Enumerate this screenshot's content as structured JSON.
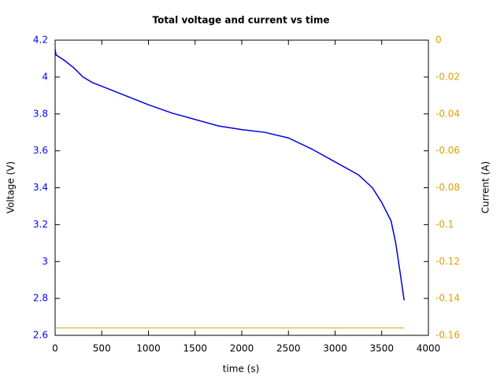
{
  "chart_data": {
    "type": "line",
    "title": "Total voltage and current vs time",
    "x_label": "time (s)",
    "y_label": "Voltage (V)",
    "y2_label": "Current (A)",
    "xlim": [
      0,
      4000
    ],
    "xticks": [
      0,
      500,
      1000,
      1500,
      2000,
      2500,
      3000,
      3500,
      4000
    ],
    "ylim": [
      2.6,
      4.2
    ],
    "yticks": [
      2.6,
      2.8,
      3,
      3.2,
      3.4,
      3.6,
      3.8,
      4,
      4.2
    ],
    "y2lim": [
      -0.16,
      0
    ],
    "y2ticks": [
      -0.16,
      -0.14,
      -0.12,
      -0.1,
      -0.08,
      -0.06,
      -0.04,
      -0.02,
      0
    ],
    "y_color": "#0000ff",
    "y2_color": "#e0a000",
    "series": [
      {
        "color": "#0000e0",
        "x": [
          0,
          10,
          100,
          200,
          300,
          400,
          500,
          750,
          1000,
          1250,
          1500,
          1750,
          2000,
          2250,
          2500,
          2750,
          3000,
          3250,
          3400,
          3500,
          3600,
          3650,
          3700,
          3740
        ],
        "values": [
          4.15,
          4.12,
          4.09,
          4.05,
          4.0,
          3.97,
          3.95,
          3.9,
          3.85,
          3.805,
          3.77,
          3.735,
          3.715,
          3.7,
          3.67,
          3.61,
          3.54,
          3.47,
          3.4,
          3.32,
          3.22,
          3.1,
          2.93,
          2.79
        ]
      },
      {
        "color": "#d4a017",
        "axis": "y2",
        "x": [
          0,
          3740
        ],
        "values": [
          -0.156,
          -0.156
        ]
      }
    ]
  }
}
